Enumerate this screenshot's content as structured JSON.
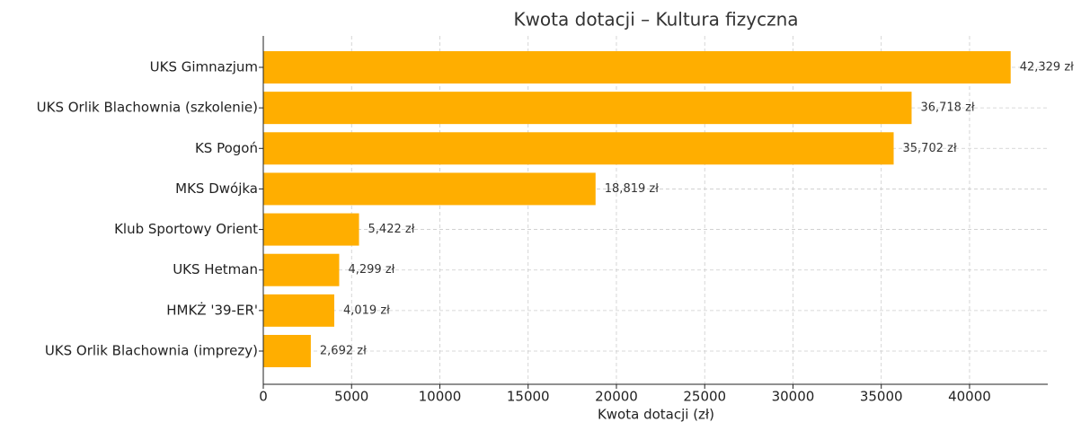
{
  "chart_data": {
    "type": "bar",
    "orientation": "horizontal",
    "title": "Kwota dotacji – Kultura fizyczna",
    "xlabel": "Kwota dotacji (zł)",
    "categories": [
      "UKS Gimnazjum",
      "UKS Orlik Blachownia (szkolenie)",
      "KS Pogoń",
      "MKS Dwójka",
      "Klub Sportowy Orient",
      "UKS Hetman",
      "HMKŻ '39-ER'",
      "UKS Orlik Blachownia (imprezy)"
    ],
    "values": [
      42329,
      36718,
      35702,
      18819,
      5422,
      4299,
      4019,
      2692
    ],
    "value_labels": [
      "42,329 zł",
      "36,718 zł",
      "35,702 zł",
      "18,819 zł",
      "5,422 zł",
      "4,299 zł",
      "4,019 zł",
      "2,692 zł"
    ],
    "color": "#ffae00",
    "xlim": [
      0,
      44430
    ],
    "xticks": [
      0,
      5000,
      10000,
      15000,
      20000,
      25000,
      30000,
      35000,
      40000
    ],
    "grid": true
  }
}
